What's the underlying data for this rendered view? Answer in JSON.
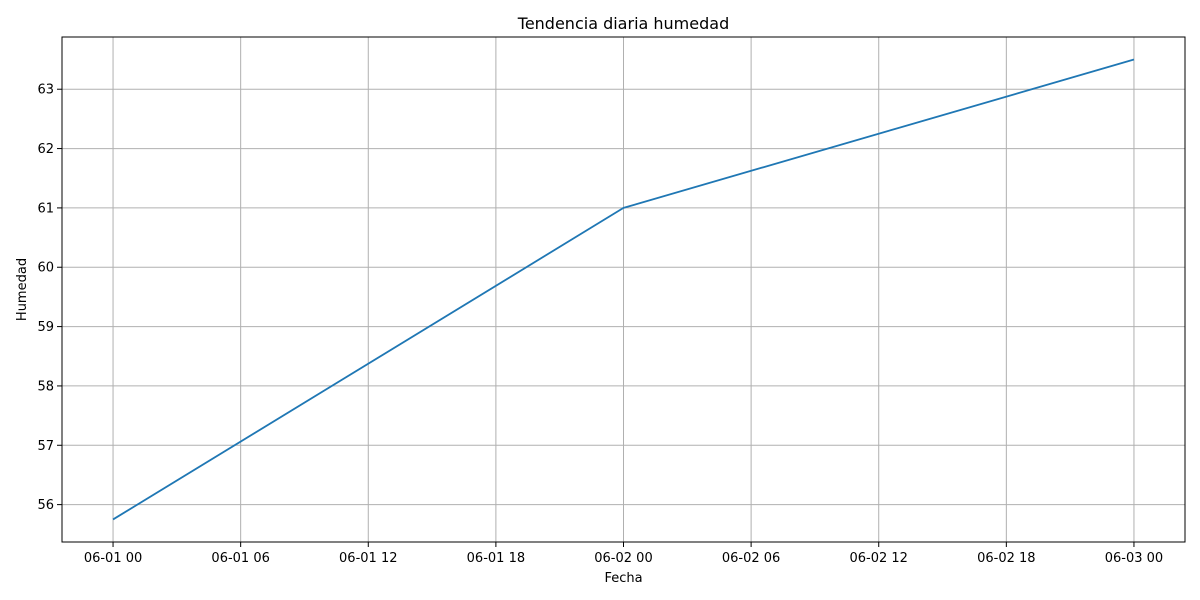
{
  "chart_data": {
    "type": "line",
    "title": "Tendencia diaria humedad",
    "xlabel": "Fecha",
    "ylabel": "Humedad",
    "x": [
      "2024-06-01 00:00",
      "2024-06-02 00:00",
      "2024-06-03 00:00"
    ],
    "series": [
      {
        "values": [
          55.75,
          61.0,
          63.5
        ],
        "color": "#1f77b4"
      }
    ],
    "x_ticks": [
      "06-01 00",
      "06-01 06",
      "06-01 12",
      "06-01 18",
      "06-02 00",
      "06-02 06",
      "06-02 12",
      "06-02 18",
      "06-03 00"
    ],
    "y_ticks": [
      56,
      57,
      58,
      59,
      60,
      61,
      62,
      63
    ],
    "ylim": [
      55.37,
      63.88
    ],
    "grid": true,
    "grid_color": "#b0b0b0"
  }
}
